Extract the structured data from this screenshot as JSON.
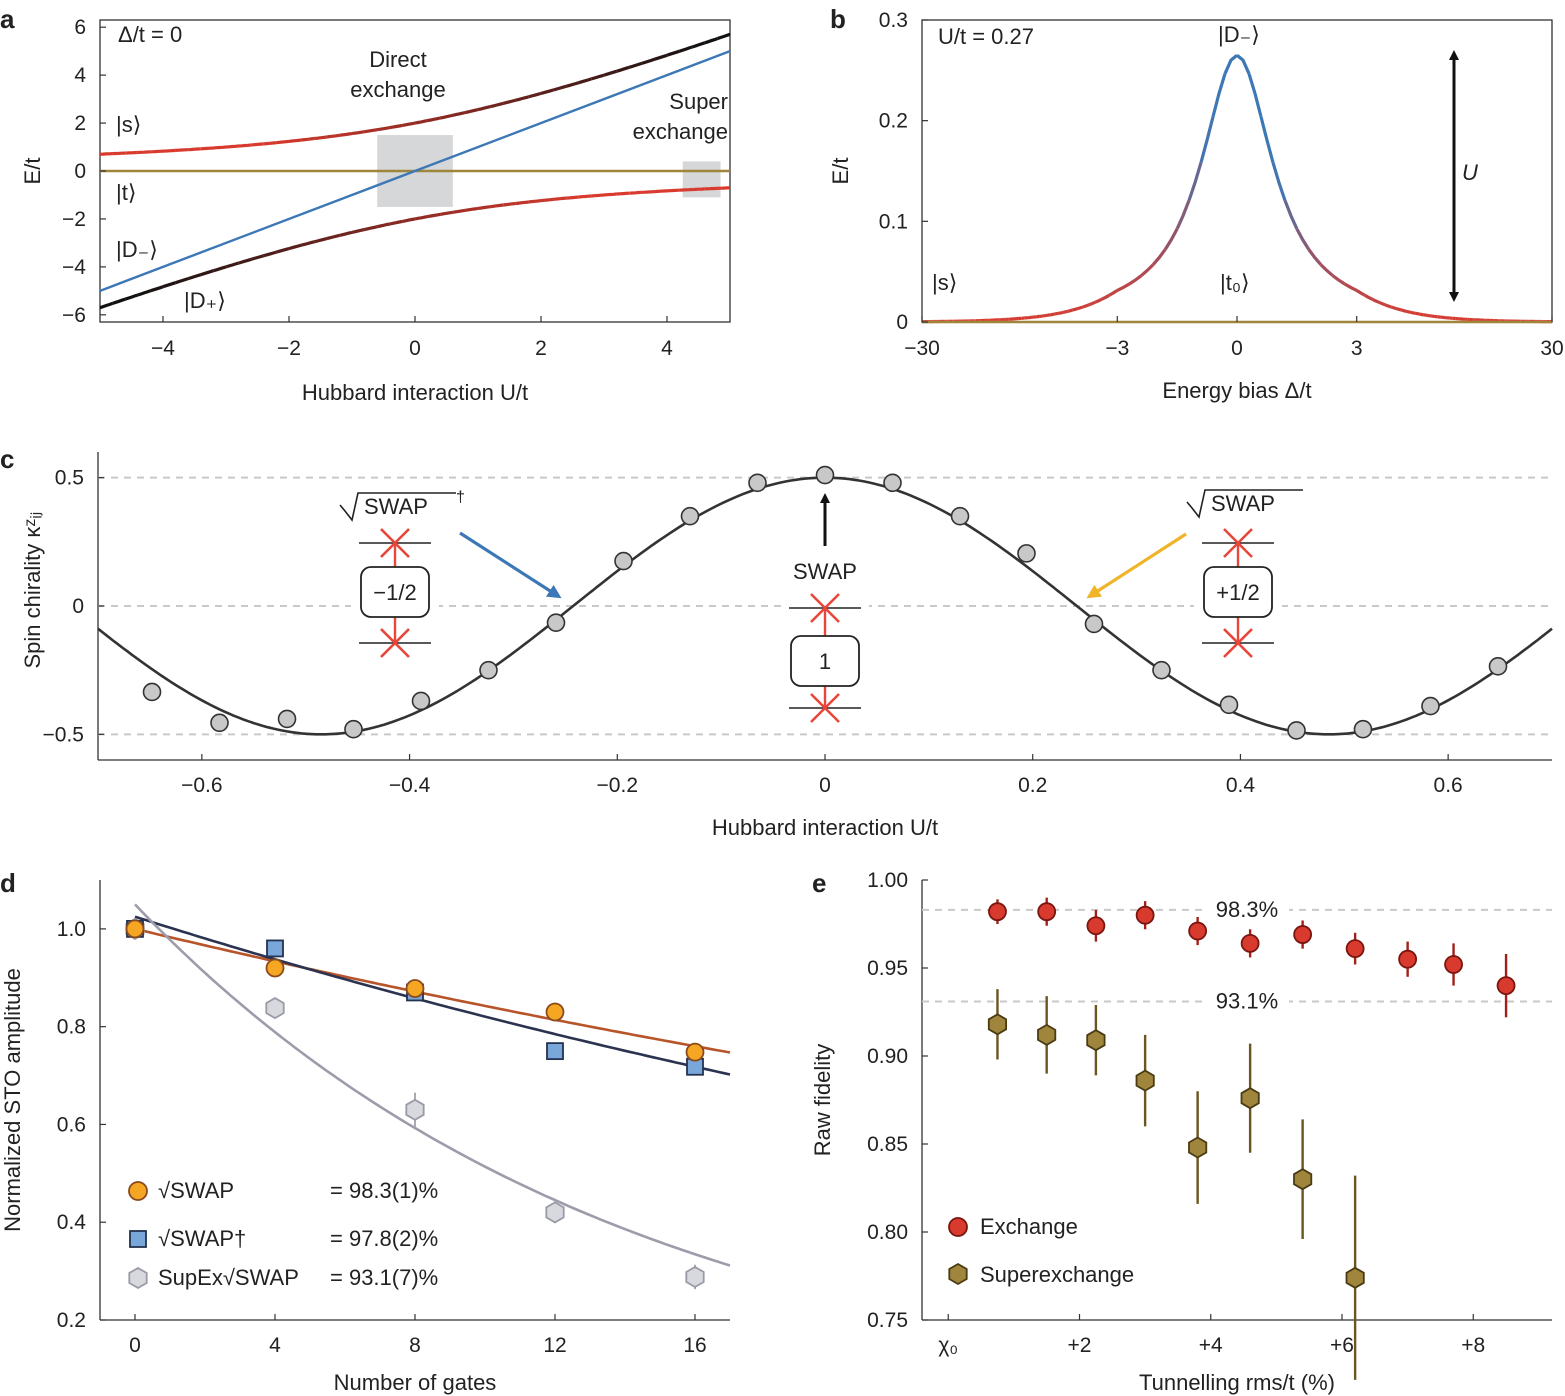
{
  "colors": {
    "red": "#d93a2e",
    "blue": "#3d78b6",
    "olive": "#a0863d",
    "darkgrey": "#333333",
    "grey_marker": "#c8c8c8",
    "orange": "#f5a623",
    "orange_line": "#b8542a",
    "navy_line": "#2b3350",
    "square_fill": "#7aa7da",
    "hex_light": "#d8d9de",
    "hex_line": "#9c9caa",
    "yellow_arrow": "#f0b429",
    "gate_cross": "#e8463a",
    "grid_dash": "#c9c9c9"
  },
  "chart_data": [
    {
      "panel": "a",
      "type": "line",
      "xlabel": "Hubbard interaction U/t",
      "ylabel": "E/t",
      "xlim": [
        -5,
        5
      ],
      "ylim": [
        -6.3,
        6.3
      ],
      "xticks": [
        -4,
        -2,
        0,
        2,
        4
      ],
      "xticklabels": [
        "−4",
        "−2",
        "0",
        "2",
        "4"
      ],
      "yticks": [
        6,
        4,
        2,
        0,
        -2,
        -4,
        -6
      ],
      "yticklabels": [
        "6",
        "4",
        "2",
        "0",
        "−2",
        "−4",
        "−6"
      ],
      "annotation_corner": "Δ/t = 0",
      "text_labels": {
        "direct": [
          "Direct",
          "exchange"
        ],
        "super": [
          "Super",
          "exchange"
        ],
        "s": "|s⟩",
        "t": "|t⟩",
        "dminus": "|D₋⟩",
        "dplus": "|D₊⟩"
      },
      "series": [
        {
          "label": "|s⟩ / |D₋⟩ branches",
          "formula": "(U ± sqrt(U^2+16))/2"
        },
        {
          "label": "|t⟩",
          "values": [
            0,
            0
          ]
        },
        {
          "label": "diagonal",
          "x": [
            -5,
            5
          ],
          "y": [
            -5,
            5
          ]
        }
      ],
      "shaded_regions": [
        {
          "x": [
            -0.6,
            0.6
          ],
          "y": [
            -1.5,
            1.5
          ]
        },
        {
          "x": [
            4.25,
            4.85
          ],
          "y": [
            -1.1,
            0.4
          ]
        }
      ]
    },
    {
      "panel": "b",
      "type": "line",
      "xlabel": "Energy bias Δ/t",
      "ylabel": "E/t",
      "xticklabels": [
        "−30",
        "−3",
        "0",
        "3",
        "30"
      ],
      "ylim": [
        0,
        0.3
      ],
      "yticks": [
        0,
        0.1,
        0.2,
        0.3
      ],
      "yticklabels": [
        "0",
        "0.1",
        "0.2",
        "0.3"
      ],
      "annotation_corner": "U/t = 0.27",
      "peak_value": 0.265,
      "text_labels": {
        "dminus": "|D₋⟩",
        "s": "|s⟩",
        "t0": "|t₀⟩",
        "U": "U"
      }
    },
    {
      "panel": "c",
      "type": "scatter",
      "xlabel": "Hubbard interaction U/t",
      "ylabel": "Spin chirality κᶻᵢⱼ",
      "xlim": [
        -0.7,
        0.7
      ],
      "ylim": [
        -0.6,
        0.6
      ],
      "xticks": [
        -0.6,
        -0.4,
        -0.2,
        0,
        0.2,
        0.4,
        0.6
      ],
      "xticklabels": [
        "−0.6",
        "−0.4",
        "−0.2",
        "0",
        "0.2",
        "0.4",
        "0.6"
      ],
      "yticks": [
        0.5,
        0,
        -0.5
      ],
      "yticklabels": [
        "0.5",
        "0",
        "−0.5"
      ],
      "x": [
        -0.648,
        -0.583,
        -0.518,
        -0.454,
        -0.389,
        -0.324,
        -0.259,
        -0.194,
        -0.13,
        -0.065,
        0.0,
        0.065,
        0.13,
        0.194,
        0.259,
        0.324,
        0.389,
        0.454,
        0.518,
        0.583,
        0.648
      ],
      "y": [
        -0.335,
        -0.455,
        -0.44,
        -0.48,
        -0.37,
        -0.25,
        -0.065,
        0.175,
        0.35,
        0.48,
        0.51,
        0.48,
        0.35,
        0.205,
        -0.07,
        -0.25,
        -0.385,
        -0.485,
        -0.48,
        -0.39,
        -0.235
      ],
      "fit": "0.5*cos(2*pi*U/0.97)",
      "gates": [
        {
          "name": "√SWAP†",
          "value": "−1/2"
        },
        {
          "name": "SWAP",
          "value": "1"
        },
        {
          "name": "√SWAP",
          "value": "+1/2"
        }
      ]
    },
    {
      "panel": "d",
      "type": "scatter",
      "xlabel": "Number of gates",
      "ylabel": "Normalized STO amplitude",
      "xlim": [
        -1,
        17
      ],
      "ylim": [
        0.2,
        1.1
      ],
      "xticks": [
        0,
        4,
        8,
        12,
        16
      ],
      "xticklabels": [
        "0",
        "4",
        "8",
        "12",
        "16"
      ],
      "yticks": [
        0.2,
        0.4,
        0.6,
        0.8,
        1.0
      ],
      "yticklabels": [
        "0.2",
        "0.4",
        "0.6",
        "0.8",
        "1.0"
      ],
      "series": [
        {
          "name": "√SWAP",
          "legend_value": "= 98.3(1)%",
          "x": [
            0,
            4,
            8,
            12,
            16
          ],
          "y": [
            1.0,
            0.92,
            0.878,
            0.83,
            0.748
          ],
          "fit": {
            "a": 1.0,
            "r": 0.983
          }
        },
        {
          "name": "√SWAP†",
          "legend_value": "= 97.8(2)%",
          "x": [
            0,
            4,
            8,
            12,
            16
          ],
          "y": [
            1.0,
            0.96,
            0.87,
            0.75,
            0.718
          ],
          "fit": {
            "a": 1.025,
            "r": 0.978
          }
        },
        {
          "name": "SupEx√SWAP",
          "legend_value": "= 93.1(7)%",
          "x": [
            0,
            4,
            8,
            12,
            16
          ],
          "y": [
            1.0,
            0.838,
            0.63,
            0.42,
            0.288
          ],
          "err": [
            0.02,
            0.02,
            0.035,
            0.02,
            0.025
          ],
          "fit": {
            "a": 1.05,
            "r": 0.931
          }
        }
      ]
    },
    {
      "panel": "e",
      "type": "scatter",
      "xlabel": "Tunnelling rms/t (%)",
      "ylabel": "Raw fidelity",
      "xlim": [
        -0.4,
        9.2
      ],
      "ylim": [
        0.75,
        1.0
      ],
      "xticks": [
        0,
        2,
        4,
        6,
        8
      ],
      "xticklabels": [
        "χ₀",
        "+2",
        "+4",
        "+6",
        "+8"
      ],
      "yticks": [
        0.75,
        0.8,
        0.85,
        0.9,
        0.95,
        1.0
      ],
      "yticklabels": [
        "0.75",
        "0.80",
        "0.85",
        "0.90",
        "0.95",
        "1.00"
      ],
      "reference_lines": [
        {
          "value": 0.983,
          "label": "98.3%"
        },
        {
          "value": 0.931,
          "label": "93.1%"
        }
      ],
      "series": [
        {
          "name": "Exchange",
          "x": [
            0.75,
            1.5,
            2.25,
            3.0,
            3.8,
            4.6,
            5.4,
            6.2,
            7.0,
            7.7,
            8.5
          ],
          "y": [
            0.982,
            0.982,
            0.974,
            0.98,
            0.971,
            0.964,
            0.969,
            0.961,
            0.955,
            0.952,
            0.94
          ],
          "err": [
            0.007,
            0.008,
            0.009,
            0.008,
            0.008,
            0.008,
            0.008,
            0.009,
            0.01,
            0.012,
            0.018
          ]
        },
        {
          "name": "Superexchange",
          "x": [
            0.75,
            1.5,
            2.25,
            3.0,
            3.8,
            4.6,
            5.4,
            6.2
          ],
          "y": [
            0.918,
            0.912,
            0.909,
            0.886,
            0.848,
            0.876,
            0.83,
            0.774
          ],
          "err": [
            0.02,
            0.022,
            0.02,
            0.026,
            0.032,
            0.031,
            0.034,
            0.058
          ]
        }
      ]
    }
  ]
}
